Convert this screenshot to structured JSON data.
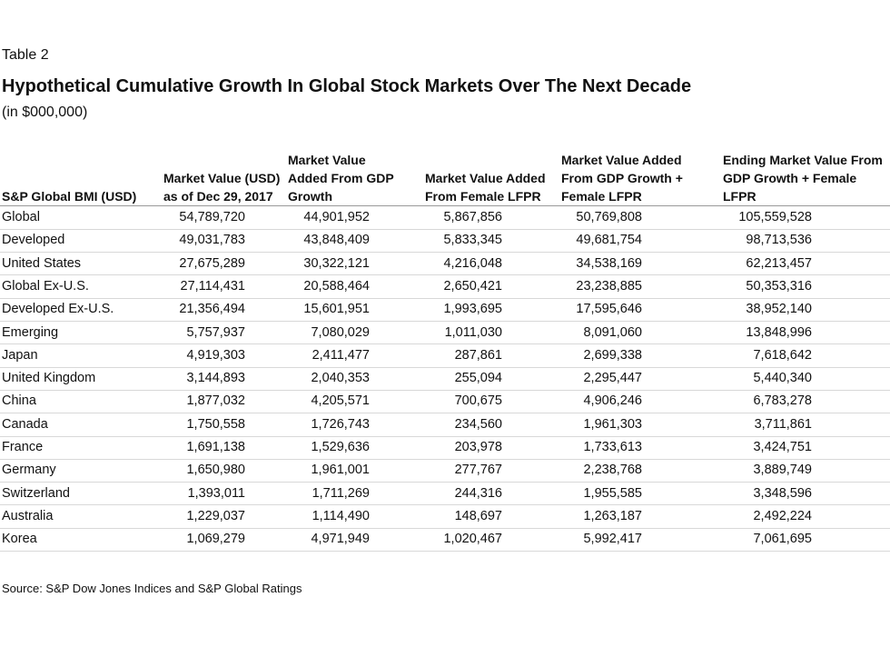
{
  "header": {
    "label": "Table 2",
    "title": "Hypothetical Cumulative Growth In Global Stock Markets Over The Next Decade",
    "subtitle": "(in $000,000)"
  },
  "table": {
    "columns": [
      "S&P Global BMI (USD)",
      "Market Value (USD) as of Dec 29, 2017",
      "Market Value Added From GDP Growth",
      "Market Value Added From Female LFPR",
      "Market Value Added From GDP Growth + Female LFPR",
      "Ending Market Value From GDP Growth + Female LFPR"
    ],
    "rows": [
      [
        "Global",
        "54,789,720",
        "44,901,952",
        "5,867,856",
        "50,769,808",
        "105,559,528"
      ],
      [
        "Developed",
        "49,031,783",
        "43,848,409",
        "5,833,345",
        "49,681,754",
        "98,713,536"
      ],
      [
        "United States",
        "27,675,289",
        "30,322,121",
        "4,216,048",
        "34,538,169",
        "62,213,457"
      ],
      [
        "Global Ex-U.S.",
        "27,114,431",
        "20,588,464",
        "2,650,421",
        "23,238,885",
        "50,353,316"
      ],
      [
        "Developed Ex-U.S.",
        "21,356,494",
        "15,601,951",
        "1,993,695",
        "17,595,646",
        "38,952,140"
      ],
      [
        "Emerging",
        "5,757,937",
        "7,080,029",
        "1,011,030",
        "8,091,060",
        "13,848,996"
      ],
      [
        "Japan",
        "4,919,303",
        "2,411,477",
        "287,861",
        "2,699,338",
        "7,618,642"
      ],
      [
        "United Kingdom",
        "3,144,893",
        "2,040,353",
        "255,094",
        "2,295,447",
        "5,440,340"
      ],
      [
        "China",
        "1,877,032",
        "4,205,571",
        "700,675",
        "4,906,246",
        "6,783,278"
      ],
      [
        "Canada",
        "1,750,558",
        "1,726,743",
        "234,560",
        "1,961,303",
        "3,711,861"
      ],
      [
        "France",
        "1,691,138",
        "1,529,636",
        "203,978",
        "1,733,613",
        "3,424,751"
      ],
      [
        "Germany",
        "1,650,980",
        "1,961,001",
        "277,767",
        "2,238,768",
        "3,889,749"
      ],
      [
        "Switzerland",
        "1,393,011",
        "1,711,269",
        "244,316",
        "1,955,585",
        "3,348,596"
      ],
      [
        "Australia",
        "1,229,037",
        "1,114,490",
        "148,697",
        "1,263,187",
        "2,492,224"
      ],
      [
        "Korea",
        "1,069,279",
        "4,971,949",
        "1,020,467",
        "5,992,417",
        "7,061,695"
      ]
    ]
  },
  "footer": {
    "source": "Source: S&P Dow Jones Indices and S&P Global Ratings"
  }
}
